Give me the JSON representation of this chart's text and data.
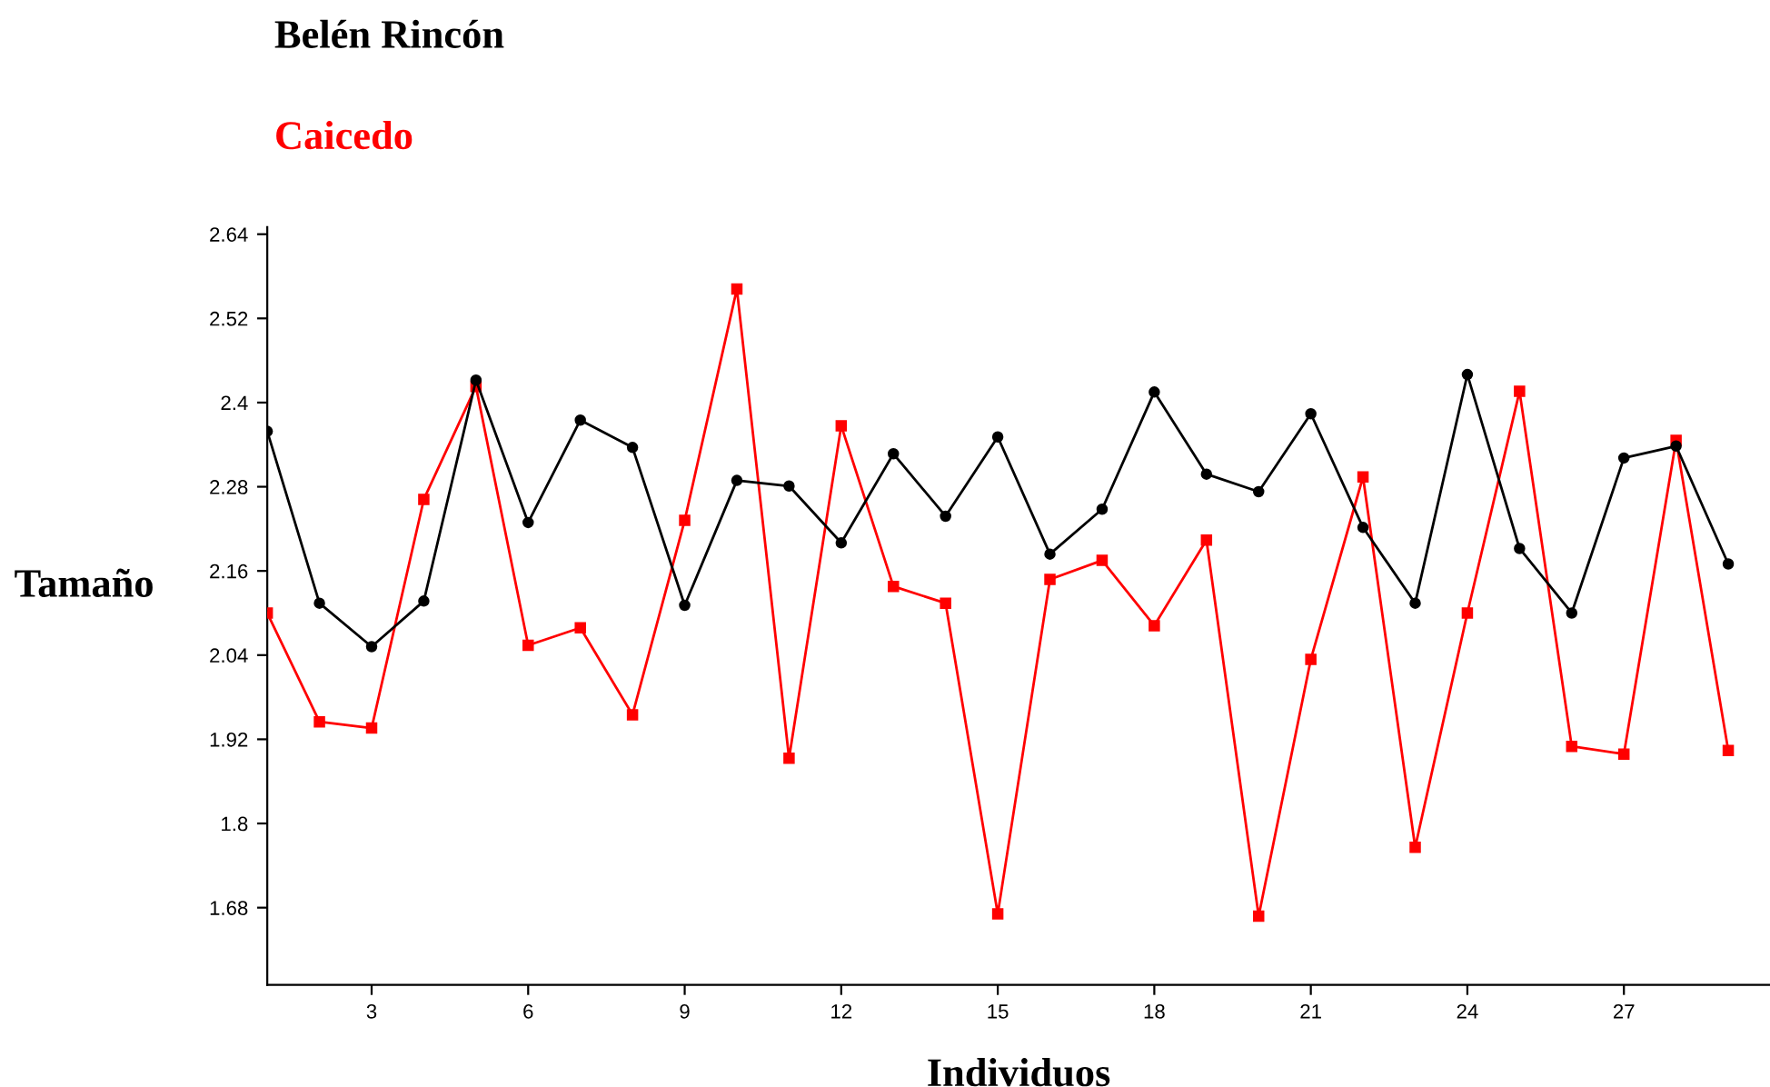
{
  "chart_data": {
    "type": "line",
    "xlabel": "Individuos",
    "ylabel": "Tamaño",
    "x": [
      1,
      2,
      3,
      4,
      5,
      6,
      7,
      8,
      9,
      10,
      11,
      12,
      13,
      14,
      15,
      16,
      17,
      18,
      19,
      20,
      21,
      22,
      23,
      24,
      25,
      26,
      27,
      28,
      29
    ],
    "series": [
      {
        "name": "Belén Rincón",
        "color": "#000000",
        "marker": "circle",
        "values": [
          2.359,
          2.114,
          2.052,
          2.117,
          2.432,
          2.229,
          2.375,
          2.336,
          2.111,
          2.289,
          2.281,
          2.2,
          2.327,
          2.238,
          2.351,
          2.184,
          2.248,
          2.415,
          2.298,
          2.273,
          2.384,
          2.222,
          2.114,
          2.44,
          2.192,
          2.1,
          2.321,
          2.338,
          2.17
        ]
      },
      {
        "name": "Caicedo",
        "color": "#ff0000",
        "marker": "square",
        "values": [
          2.1,
          1.945,
          1.936,
          2.262,
          2.423,
          2.054,
          2.079,
          1.955,
          2.232,
          2.562,
          1.893,
          2.367,
          2.138,
          2.114,
          1.671,
          2.148,
          2.175,
          2.082,
          2.204,
          1.668,
          2.034,
          2.294,
          1.766,
          2.1,
          2.416,
          1.91,
          1.899,
          2.346,
          1.904
        ]
      }
    ],
    "xlim": [
      1,
      29.8
    ],
    "xticks": [
      3,
      6,
      9,
      12,
      15,
      18,
      21,
      24,
      27
    ],
    "ylim": [
      1.57,
      2.65
    ],
    "yticks": [
      1.68,
      1.8,
      1.92,
      2.04,
      2.16,
      2.28,
      2.4,
      2.52,
      2.64
    ],
    "grid": false,
    "legend": "top left",
    "line_style": "solid"
  }
}
